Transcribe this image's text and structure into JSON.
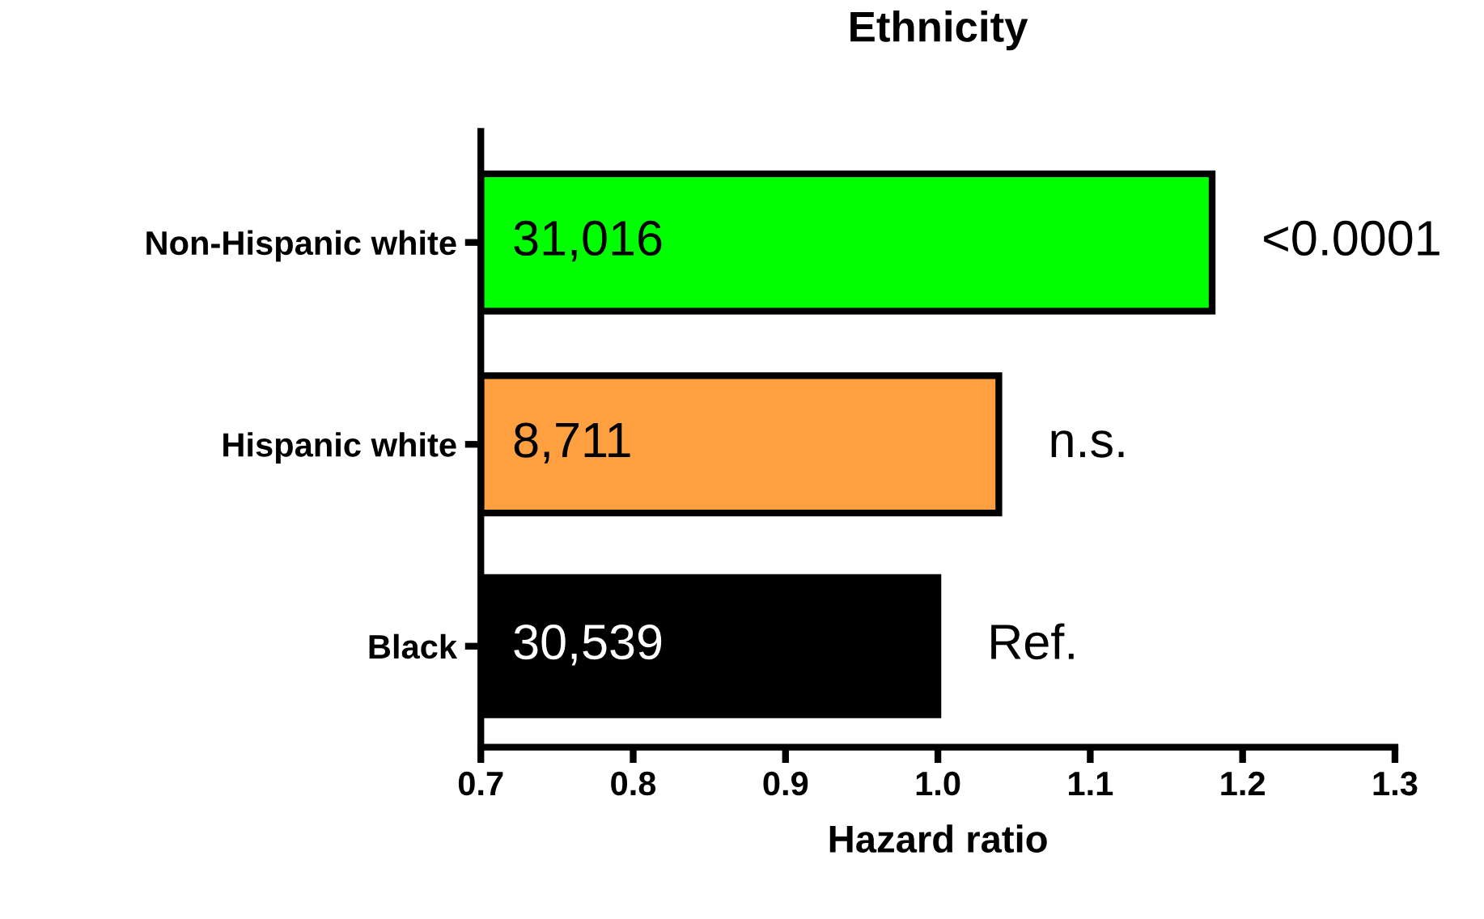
{
  "chart_data": {
    "type": "bar",
    "orientation": "horizontal",
    "title": "Ethnicity",
    "xlabel": "Hazard ratio",
    "categories": [
      "Non-Hispanic white",
      "Hispanic white",
      "Black"
    ],
    "values": [
      1.18,
      1.04,
      1.0
    ],
    "colors": [
      "#00ff00",
      "#ffa040",
      "#000000"
    ],
    "xlim": [
      0.7,
      1.3
    ],
    "xticks": [
      0.7,
      0.8,
      0.9,
      {
        "value": 1.0,
        "label": "1.0"
      },
      1.1,
      1.2,
      1.3
    ],
    "grid": false,
    "legend": false,
    "annotations": [
      "31,016",
      "8,711",
      "30,539",
      "<0.0001",
      "n.s.",
      "Ref."
    ]
  }
}
